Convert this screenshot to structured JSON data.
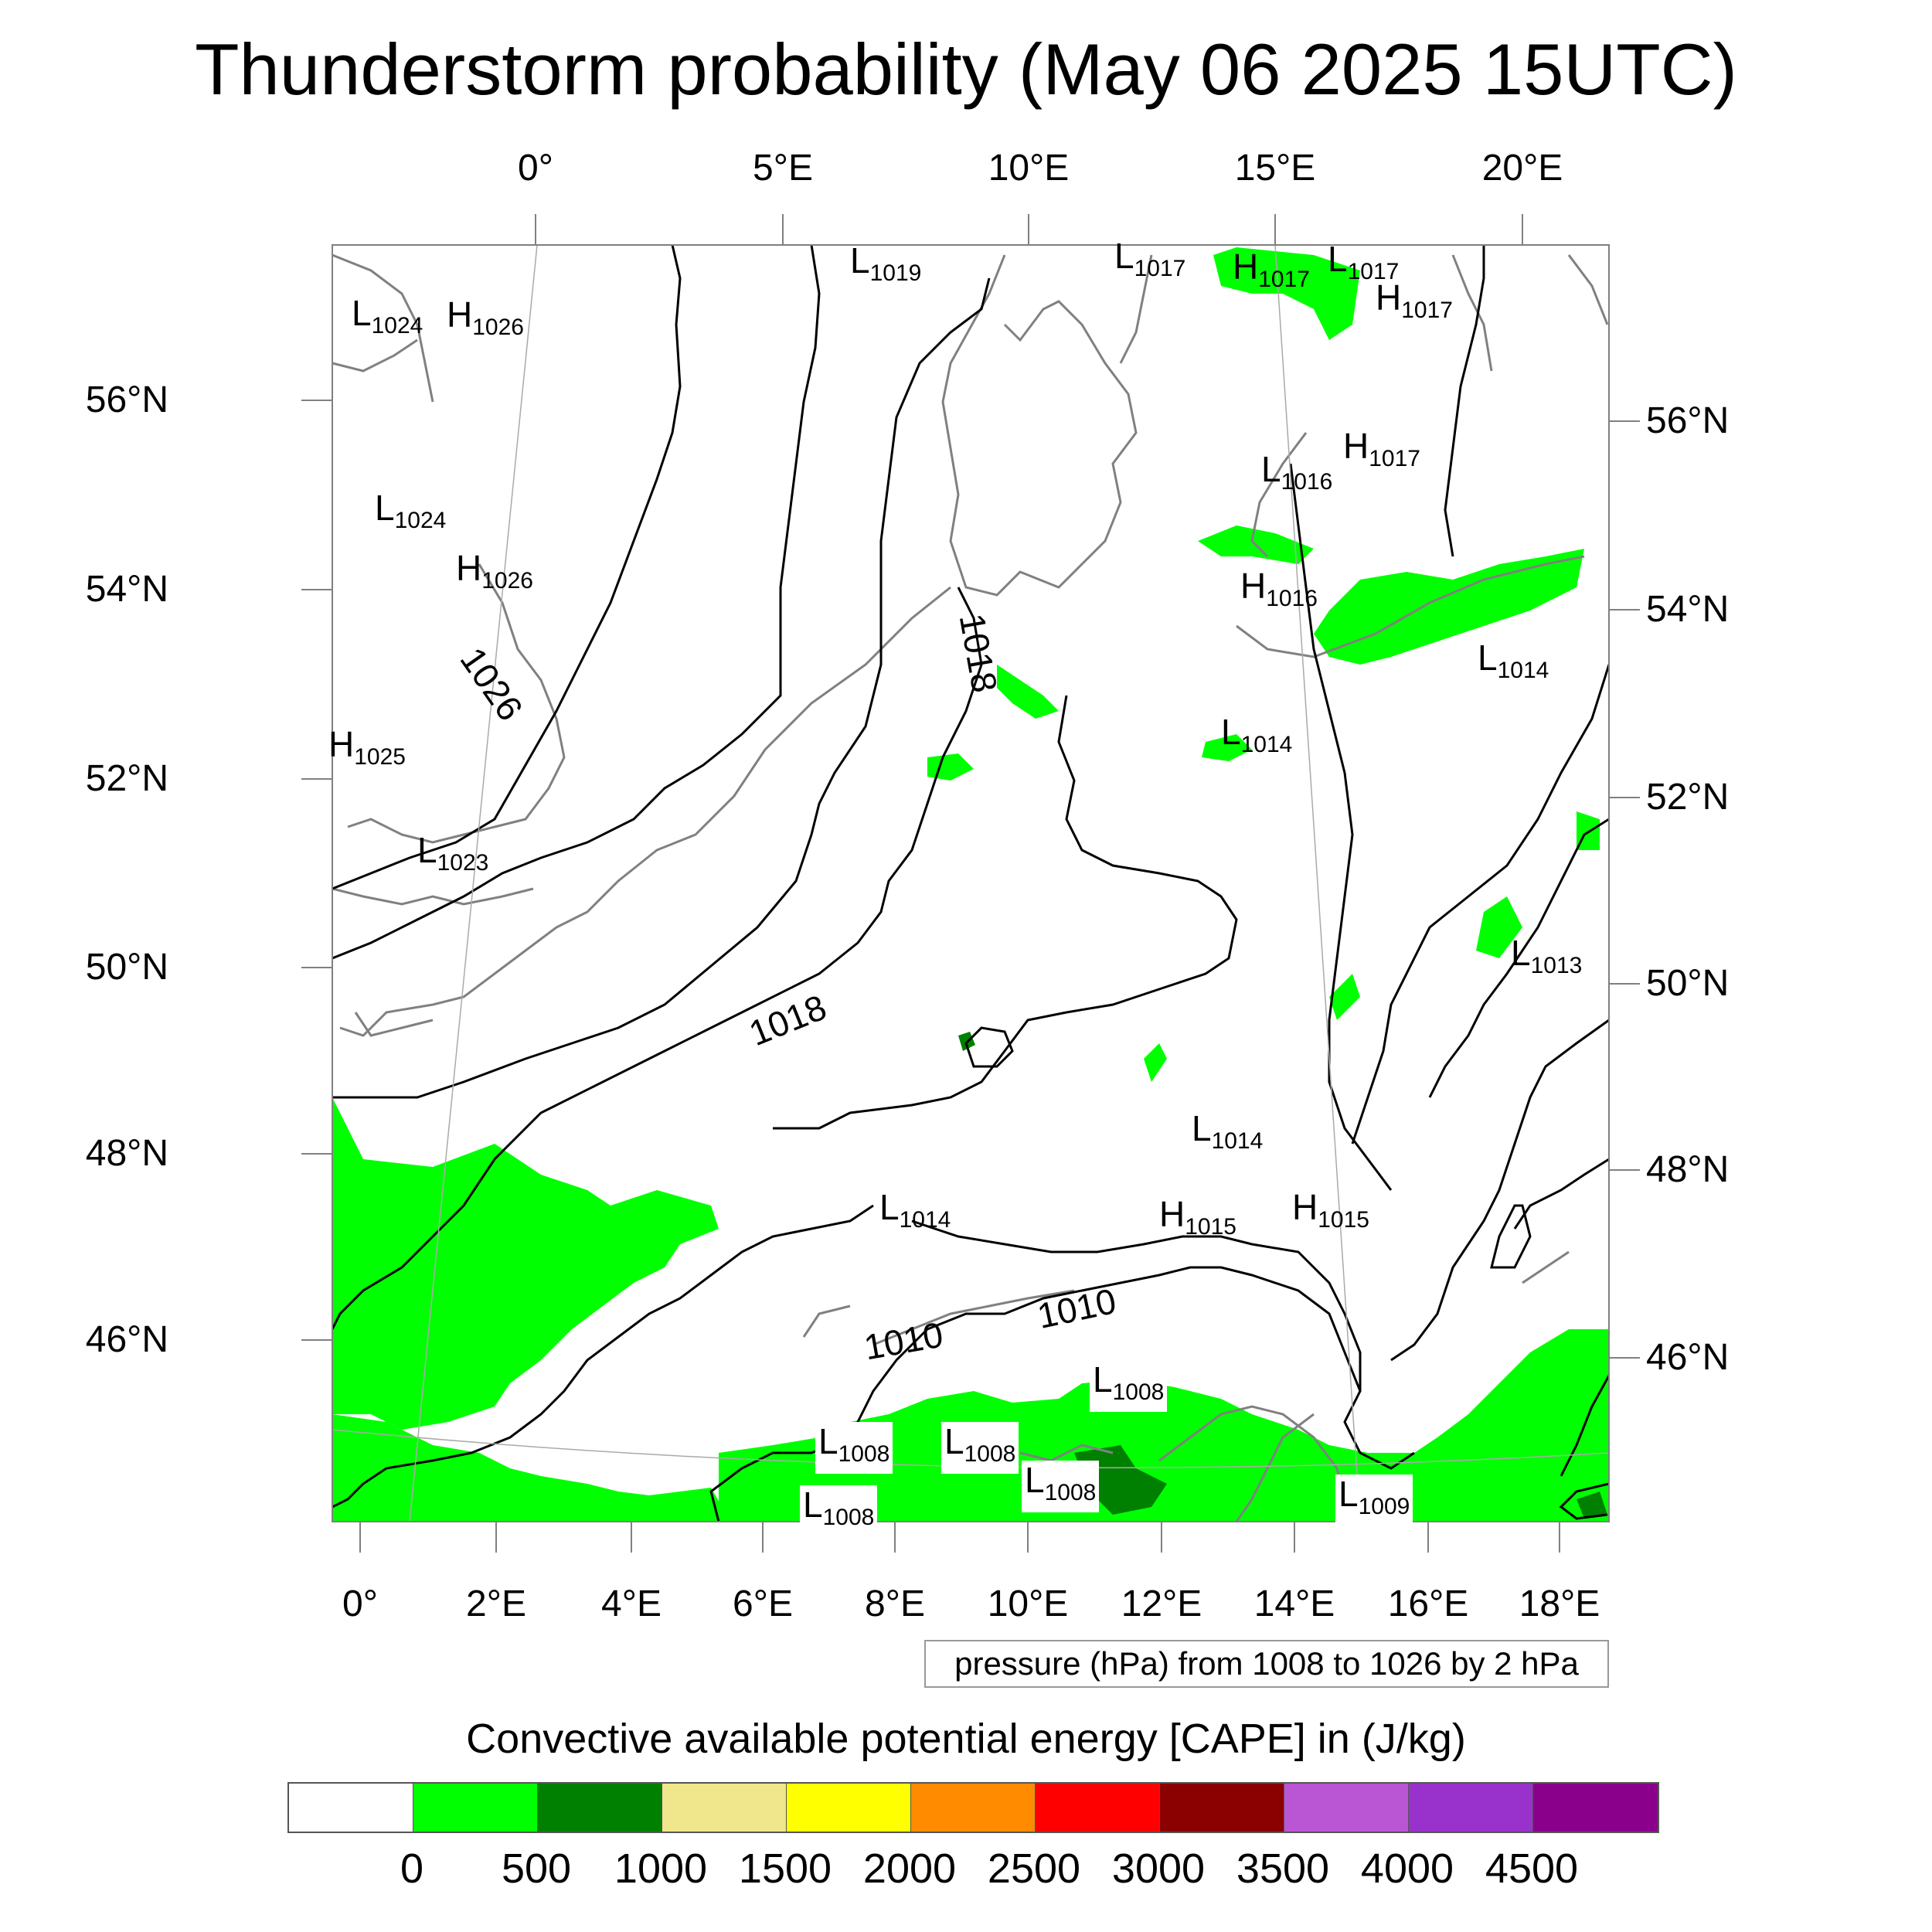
{
  "title": "Thunderstorm probability (May 06 2025 15UTC)",
  "top_lon_labels": [
    "0°",
    "5°E",
    "10°E",
    "15°E",
    "20°E"
  ],
  "bottom_lon_labels": [
    "0°",
    "2°E",
    "4°E",
    "6°E",
    "8°E",
    "10°E",
    "12°E",
    "14°E",
    "16°E",
    "18°E"
  ],
  "left_lat_labels": [
    "56°N",
    "54°N",
    "52°N",
    "50°N",
    "48°N",
    "46°N"
  ],
  "right_lat_labels": [
    "56°N",
    "54°N",
    "52°N",
    "50°N",
    "48°N",
    "46°N"
  ],
  "pressure_centers": [
    {
      "type": "L",
      "value": "1019"
    },
    {
      "type": "L",
      "value": "1017"
    },
    {
      "type": "H",
      "value": "1017"
    },
    {
      "type": "L",
      "value": "1017"
    },
    {
      "type": "H",
      "value": "1017"
    },
    {
      "type": "L",
      "value": "1024"
    },
    {
      "type": "H",
      "value": "1026"
    },
    {
      "type": "L",
      "value": "1024"
    },
    {
      "type": "H",
      "value": "1026"
    },
    {
      "type": "H",
      "value": "1017"
    },
    {
      "type": "L",
      "value": "1016"
    },
    {
      "type": "H",
      "value": "1016"
    },
    {
      "type": "L",
      "value": "1014"
    },
    {
      "type": "L",
      "value": "1014"
    },
    {
      "type": "H",
      "value": "1025"
    },
    {
      "type": "L",
      "value": "1023"
    },
    {
      "type": "L",
      "value": "1013"
    },
    {
      "type": "L",
      "value": "1014"
    },
    {
      "type": "L",
      "value": "1014"
    },
    {
      "type": "H",
      "value": "1015"
    },
    {
      "type": "H",
      "value": "1015"
    },
    {
      "type": "L",
      "value": "1008"
    },
    {
      "type": "L",
      "value": "1008"
    },
    {
      "type": "L",
      "value": "1008"
    },
    {
      "type": "L",
      "value": "1008"
    },
    {
      "type": "L",
      "value": "1008"
    },
    {
      "type": "L",
      "value": "1009"
    }
  ],
  "contour_labels": [
    "1026",
    "1018",
    "1018",
    "1010",
    "1010"
  ],
  "pressure_note": "pressure (hPa) from 1008 to 1026 by 2 hPa",
  "cape_title": "Convective available potential energy [CAPE] in (J/kg)",
  "colorbar": {
    "colors": [
      "#ffffff",
      "#00ff00",
      "#008000",
      "#f0e68c",
      "#ffff00",
      "#ff8c00",
      "#ff0000",
      "#8b0000",
      "#ba55d3",
      "#9932cc",
      "#8b008b"
    ],
    "ticks": [
      "0",
      "500",
      "1000",
      "1500",
      "2000",
      "2500",
      "3000",
      "3500",
      "4000",
      "4500"
    ]
  },
  "colors": {
    "cape_low": "#00ff00",
    "cape_mid": "#008000",
    "coastline": "#808080",
    "isobar": "#000000"
  }
}
